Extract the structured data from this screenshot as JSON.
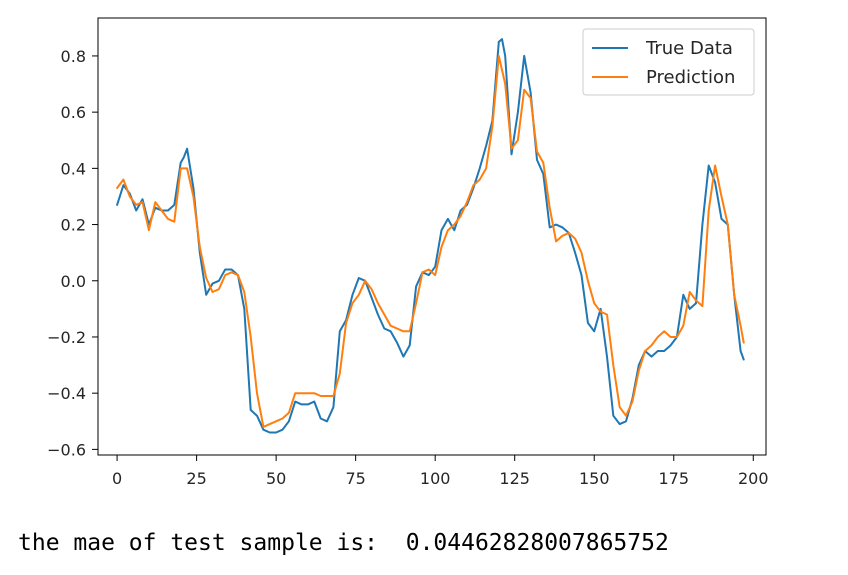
{
  "chart_data": {
    "type": "line",
    "xlim": [
      -6,
      204
    ],
    "ylim": [
      -0.62,
      0.935
    ],
    "x_ticks": [
      0,
      25,
      50,
      75,
      100,
      125,
      150,
      175,
      200
    ],
    "x_tick_labels": [
      "0",
      "25",
      "50",
      "75",
      "100",
      "125",
      "150",
      "175",
      "200"
    ],
    "y_ticks": [
      -0.6,
      -0.4,
      -0.2,
      0.0,
      0.2,
      0.4,
      0.6,
      0.8
    ],
    "y_tick_labels": [
      "−0.6",
      "−0.4",
      "−0.2",
      "0.0",
      "0.2",
      "0.4",
      "0.6",
      "0.8"
    ],
    "grid": false,
    "legend_position": "top-right",
    "series": [
      {
        "name": "True Data",
        "color": "#1f77b4",
        "x": [
          0,
          2,
          4,
          6,
          8,
          10,
          12,
          14,
          16,
          18,
          20,
          21,
          22,
          24,
          26,
          28,
          30,
          32,
          34,
          36,
          38,
          40,
          42,
          44,
          46,
          48,
          50,
          52,
          54,
          56,
          58,
          60,
          62,
          64,
          66,
          68,
          70,
          72,
          74,
          76,
          78,
          80,
          82,
          84,
          86,
          88,
          90,
          92,
          94,
          96,
          98,
          100,
          102,
          104,
          106,
          108,
          110,
          112,
          114,
          116,
          118,
          120,
          121,
          122,
          124,
          126,
          128,
          130,
          132,
          134,
          136,
          138,
          140,
          142,
          144,
          146,
          148,
          150,
          152,
          154,
          156,
          158,
          160,
          162,
          164,
          166,
          168,
          170,
          172,
          174,
          176,
          178,
          180,
          182,
          184,
          186,
          188,
          190,
          192,
          194,
          196,
          197
        ],
        "y": [
          0.27,
          0.34,
          0.31,
          0.25,
          0.29,
          0.2,
          0.26,
          0.25,
          0.25,
          0.27,
          0.42,
          0.44,
          0.47,
          0.33,
          0.1,
          -0.05,
          -0.01,
          0.0,
          0.04,
          0.04,
          0.02,
          -0.1,
          -0.46,
          -0.48,
          -0.53,
          -0.54,
          -0.54,
          -0.53,
          -0.5,
          -0.43,
          -0.44,
          -0.44,
          -0.43,
          -0.49,
          -0.5,
          -0.45,
          -0.18,
          -0.14,
          -0.05,
          0.01,
          0.0,
          -0.06,
          -0.12,
          -0.17,
          -0.18,
          -0.22,
          -0.27,
          -0.23,
          -0.02,
          0.03,
          0.02,
          0.05,
          0.18,
          0.22,
          0.18,
          0.25,
          0.27,
          0.33,
          0.4,
          0.48,
          0.57,
          0.85,
          0.86,
          0.8,
          0.45,
          0.6,
          0.8,
          0.67,
          0.43,
          0.38,
          0.19,
          0.2,
          0.19,
          0.17,
          0.1,
          0.02,
          -0.15,
          -0.18,
          -0.1,
          -0.27,
          -0.48,
          -0.51,
          -0.5,
          -0.42,
          -0.3,
          -0.25,
          -0.27,
          -0.25,
          -0.25,
          -0.23,
          -0.2,
          -0.05,
          -0.1,
          -0.08,
          0.2,
          0.41,
          0.35,
          0.22,
          0.2,
          -0.05,
          -0.25,
          -0.28
        ]
      },
      {
        "name": "Prediction",
        "color": "#ff7f0e",
        "x": [
          0,
          2,
          4,
          6,
          8,
          10,
          12,
          14,
          16,
          18,
          20,
          22,
          24,
          26,
          28,
          30,
          32,
          34,
          36,
          38,
          40,
          42,
          44,
          46,
          48,
          50,
          52,
          54,
          56,
          58,
          60,
          62,
          64,
          66,
          68,
          70,
          72,
          74,
          76,
          78,
          80,
          82,
          84,
          86,
          88,
          90,
          92,
          94,
          96,
          98,
          100,
          102,
          104,
          106,
          108,
          110,
          112,
          114,
          116,
          118,
          120,
          122,
          124,
          126,
          128,
          130,
          132,
          134,
          136,
          138,
          140,
          142,
          144,
          146,
          148,
          150,
          152,
          154,
          156,
          158,
          160,
          162,
          164,
          166,
          168,
          170,
          172,
          174,
          176,
          178,
          180,
          182,
          184,
          186,
          188,
          190,
          192,
          194,
          196,
          197
        ],
        "y": [
          0.33,
          0.36,
          0.3,
          0.27,
          0.28,
          0.18,
          0.28,
          0.25,
          0.22,
          0.21,
          0.4,
          0.4,
          0.3,
          0.12,
          0.01,
          -0.04,
          -0.03,
          0.02,
          0.03,
          0.02,
          -0.04,
          -0.2,
          -0.4,
          -0.52,
          -0.51,
          -0.5,
          -0.49,
          -0.47,
          -0.4,
          -0.4,
          -0.4,
          -0.4,
          -0.41,
          -0.41,
          -0.41,
          -0.33,
          -0.15,
          -0.08,
          -0.05,
          0.0,
          -0.03,
          -0.08,
          -0.12,
          -0.16,
          -0.17,
          -0.18,
          -0.18,
          -0.08,
          0.03,
          0.04,
          0.02,
          0.12,
          0.18,
          0.2,
          0.23,
          0.28,
          0.34,
          0.36,
          0.4,
          0.55,
          0.8,
          0.7,
          0.47,
          0.5,
          0.68,
          0.65,
          0.46,
          0.42,
          0.26,
          0.14,
          0.16,
          0.17,
          0.15,
          0.1,
          0.0,
          -0.08,
          -0.11,
          -0.12,
          -0.3,
          -0.45,
          -0.48,
          -0.43,
          -0.32,
          -0.25,
          -0.23,
          -0.2,
          -0.18,
          -0.2,
          -0.2,
          -0.16,
          -0.04,
          -0.07,
          -0.09,
          0.25,
          0.41,
          0.3,
          0.2,
          -0.05,
          -0.16,
          -0.22
        ]
      }
    ]
  },
  "output": {
    "text": "the mae of test sample is:  0.04462828007865752"
  }
}
